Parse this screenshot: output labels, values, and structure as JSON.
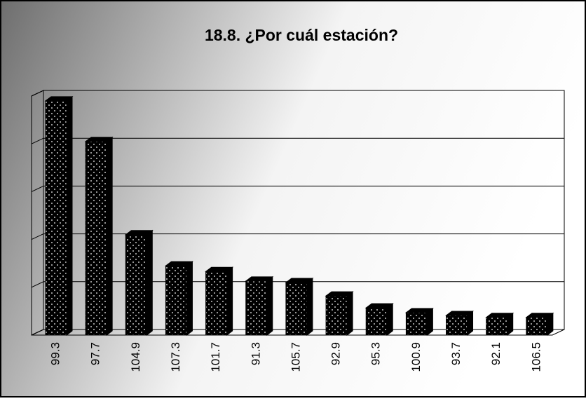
{
  "chart_data": {
    "type": "bar",
    "title": "18.8. ¿Por cuál estación?",
    "categories": [
      "99.3",
      "97.7",
      "104.9",
      "107.3",
      "101.7",
      "91.3",
      "105.7",
      "92.9",
      "95.3",
      "100.9",
      "93.7",
      "92.1",
      "106.5"
    ],
    "values": [
      4.9,
      4.05,
      2.1,
      1.45,
      1.33,
      1.13,
      1.1,
      0.82,
      0.57,
      0.47,
      0.41,
      0.37,
      0.37
    ],
    "color": "#000000",
    "ylim": [
      0,
      5
    ],
    "yticks": [
      0,
      1,
      2,
      3,
      4,
      5
    ],
    "grid": true,
    "show_tick_labels": false
  }
}
